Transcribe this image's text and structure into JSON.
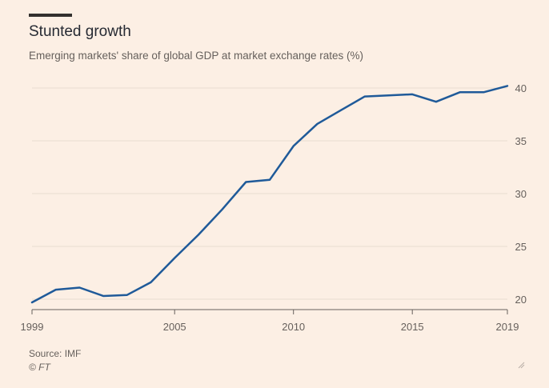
{
  "header": {
    "title": "Stunted growth",
    "subtitle": "Emerging markets' share of global GDP at market exchange rates (%)"
  },
  "footer": {
    "source": "Source: IMF",
    "credit": "© FT"
  },
  "colors": {
    "background": "#fcefe4",
    "line": "#1f5a99",
    "grid": "#e9dcd0",
    "axis": "#66605c",
    "text": "#66605c"
  },
  "icons": [
    "resize-handle-icon"
  ],
  "chart_data": {
    "type": "line",
    "title": "Stunted growth",
    "subtitle": "Emerging markets' share of global GDP at market exchange rates (%)",
    "xlabel": "",
    "ylabel": "",
    "x": [
      1999,
      2000,
      2001,
      2002,
      2003,
      2004,
      2005,
      2006,
      2007,
      2008,
      2009,
      2010,
      2011,
      2012,
      2013,
      2014,
      2015,
      2016,
      2017,
      2018,
      2019
    ],
    "series": [
      {
        "values": [
          19.7,
          20.9,
          21.1,
          20.3,
          20.4,
          21.6,
          23.9,
          26.1,
          28.5,
          31.1,
          31.3,
          34.5,
          36.6,
          37.9,
          39.2,
          39.3,
          39.4,
          38.7,
          39.6,
          39.6,
          40.2
        ]
      }
    ],
    "xticks": [
      "1999",
      "2005",
      "2010",
      "2015",
      "2019"
    ],
    "yticks": [
      "20",
      "25",
      "30",
      "35",
      "40"
    ],
    "xlim": [
      1999,
      2019
    ],
    "ylim": [
      19,
      41
    ],
    "grid": "horizontal",
    "y_axis_side": "right",
    "legend": "none"
  }
}
